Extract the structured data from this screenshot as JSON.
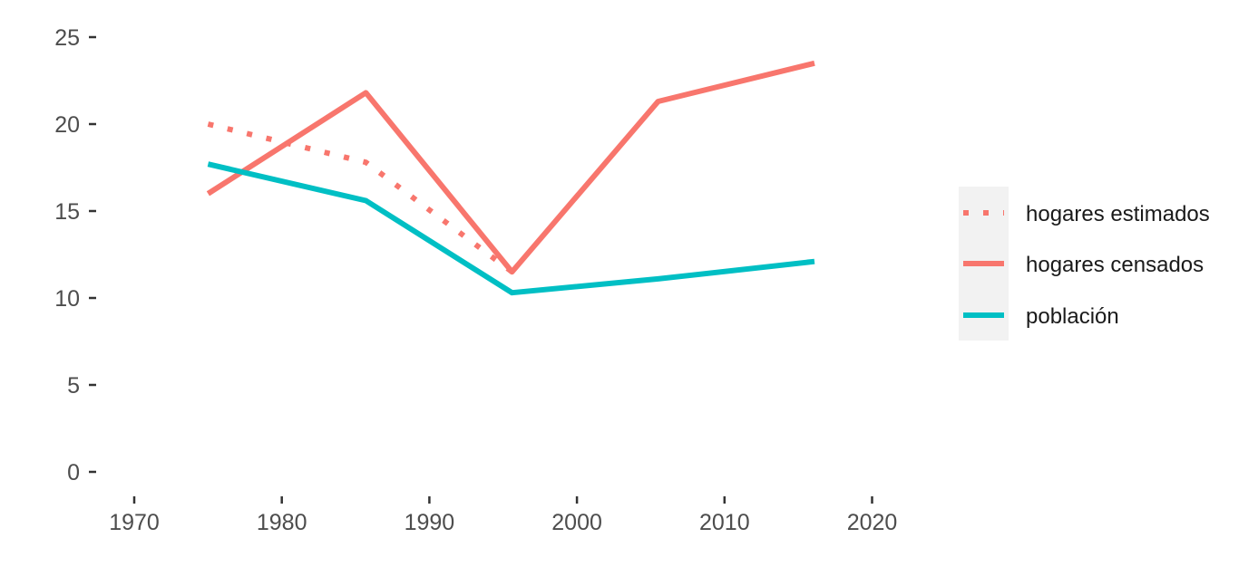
{
  "chart_data": {
    "type": "line",
    "title": "",
    "xlabel": "",
    "ylabel": "",
    "xlim": [
      1968,
      2023
    ],
    "ylim": [
      -1,
      25.5
    ],
    "x_ticks": [
      1970,
      1980,
      1990,
      2000,
      2010,
      2020
    ],
    "y_ticks": [
      0,
      5,
      10,
      15,
      20,
      25
    ],
    "grid": false,
    "legend_position": "right",
    "series": [
      {
        "name": "hogares estimados",
        "color": "#F8766D",
        "line_style": "dotted",
        "x": [
          1975,
          1985.7,
          1995.6
        ],
        "y": [
          20.0,
          17.8,
          11.5
        ]
      },
      {
        "name": "hogares censados",
        "color": "#F8766D",
        "line_style": "solid",
        "x": [
          1975,
          1985.7,
          1995.6,
          2005.5,
          2016.1
        ],
        "y": [
          16.0,
          21.8,
          11.5,
          21.3,
          23.5
        ]
      },
      {
        "name": "población",
        "color": "#00BFC4",
        "line_style": "solid",
        "x": [
          1975,
          1985.7,
          1995.6,
          2005.5,
          2016.1
        ],
        "y": [
          17.7,
          15.6,
          10.3,
          11.1,
          12.1
        ]
      }
    ]
  }
}
